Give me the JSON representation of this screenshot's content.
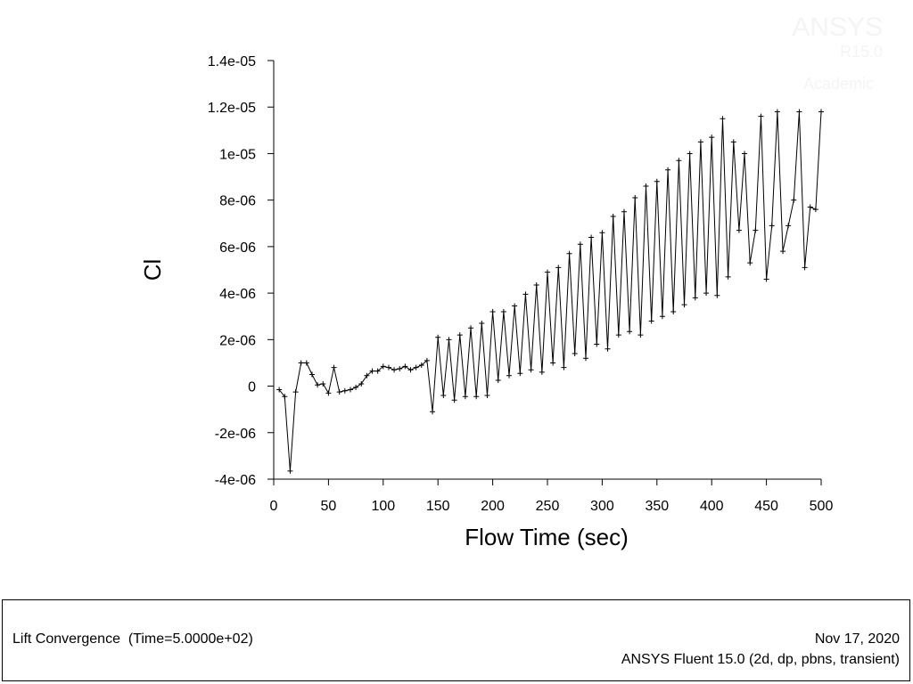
{
  "watermark": {
    "product": "ANSYS",
    "version": "R15.0",
    "edition": "Academic"
  },
  "footer": {
    "plot_title": "Lift Convergence  (Time=5.0000e+02)",
    "date": "Nov 17, 2020",
    "software": "ANSYS Fluent 15.0 (2d, dp, pbns, transient)"
  },
  "chart_data": {
    "type": "line",
    "xlabel": "Flow Time (sec)",
    "ylabel": "Cl",
    "xlim": [
      0,
      500
    ],
    "ylim": [
      -4e-06,
      1.4e-05
    ],
    "x_ticks": [
      {
        "value": 0,
        "label": "0"
      },
      {
        "value": 50,
        "label": "50"
      },
      {
        "value": 100,
        "label": "100"
      },
      {
        "value": 150,
        "label": "150"
      },
      {
        "value": 200,
        "label": "200"
      },
      {
        "value": 250,
        "label": "250"
      },
      {
        "value": 300,
        "label": "300"
      },
      {
        "value": 350,
        "label": "350"
      },
      {
        "value": 400,
        "label": "400"
      },
      {
        "value": 450,
        "label": "450"
      },
      {
        "value": 500,
        "label": "500"
      }
    ],
    "y_ticks": [
      {
        "value": 1.4e-05,
        "label": "1.4e-05"
      },
      {
        "value": 1.2e-05,
        "label": "1.2e-05"
      },
      {
        "value": 1e-05,
        "label": "1e-05"
      },
      {
        "value": 8e-06,
        "label": "8e-06"
      },
      {
        "value": 6e-06,
        "label": "6e-06"
      },
      {
        "value": 4e-06,
        "label": "4e-06"
      },
      {
        "value": 2e-06,
        "label": "2e-06"
      },
      {
        "value": 0,
        "label": "0"
      },
      {
        "value": -2e-06,
        "label": "-2e-06"
      },
      {
        "value": -4e-06,
        "label": "-4e-06"
      }
    ],
    "grid": false,
    "marker": "plus",
    "line_color": "#000000",
    "series": [
      {
        "x": [
          5,
          10,
          15,
          20,
          25,
          30,
          35,
          40,
          45,
          50,
          55,
          60,
          65,
          70,
          75,
          80,
          85,
          90,
          95,
          100,
          105,
          110,
          115,
          120,
          125,
          130,
          135,
          140,
          145,
          150,
          155,
          160,
          165,
          170,
          175,
          180,
          185,
          190,
          195,
          200,
          205,
          210,
          215,
          220,
          225,
          230,
          235,
          240,
          245,
          250,
          255,
          260,
          265,
          270,
          275,
          280,
          285,
          290,
          295,
          300,
          305,
          310,
          315,
          320,
          325,
          330,
          335,
          340,
          345,
          350,
          355,
          360,
          365,
          370,
          375,
          380,
          385,
          390,
          395,
          400,
          405,
          410,
          415,
          420,
          425,
          430,
          435,
          440,
          445,
          450,
          455,
          460,
          465,
          470,
          475,
          480,
          485,
          490,
          495,
          500
        ],
        "y": [
          -1.5e-07,
          -4.5e-07,
          -3.65e-06,
          -2.5e-07,
          1e-06,
          1e-06,
          5e-07,
          5e-08,
          1e-07,
          -3e-07,
          8e-07,
          -2.5e-07,
          -2e-07,
          -1.5e-07,
          -5e-08,
          1e-07,
          4.5e-07,
          6.5e-07,
          6.5e-07,
          8.5e-07,
          8e-07,
          7e-07,
          7.5e-07,
          8.5e-07,
          7e-07,
          8e-07,
          9e-07,
          1.1e-06,
          -1.1e-06,
          2.1e-06,
          -4e-07,
          2e-06,
          -6e-07,
          2.2e-06,
          -4.5e-07,
          2.5e-06,
          -4.5e-07,
          2.7e-06,
          -4e-07,
          3.2e-06,
          2.5e-07,
          3.2e-06,
          4.5e-07,
          3.45e-06,
          5.5e-07,
          3.95e-06,
          7e-07,
          4.35e-06,
          6e-07,
          4.9e-06,
          1e-06,
          5.1e-06,
          8e-07,
          5.7e-06,
          1.4e-06,
          6.1e-06,
          1.2e-06,
          6.4e-06,
          1.8e-06,
          6.6e-06,
          1.6e-06,
          7.3e-06,
          2.2e-06,
          7.5e-06,
          2.35e-06,
          8.1e-06,
          2.2e-06,
          8.6e-06,
          2.8e-06,
          8.8e-06,
          3e-06,
          9.3e-06,
          3.2e-06,
          9.7e-06,
          3.5e-06,
          1e-05,
          3.8e-06,
          1.05e-05,
          4e-06,
          1.07e-05,
          3.9e-06,
          1.15e-05,
          4.7e-06,
          1.05e-05,
          6.7e-06,
          1e-05,
          5.3e-06,
          6.7e-06,
          1.16e-05,
          4.6e-06,
          6.9e-06,
          1.18e-05,
          5.8e-06,
          6.9e-06,
          8e-06,
          1.18e-05,
          5.1e-06,
          7.7e-06,
          7.6e-06,
          1.18e-05
        ]
      }
    ]
  }
}
